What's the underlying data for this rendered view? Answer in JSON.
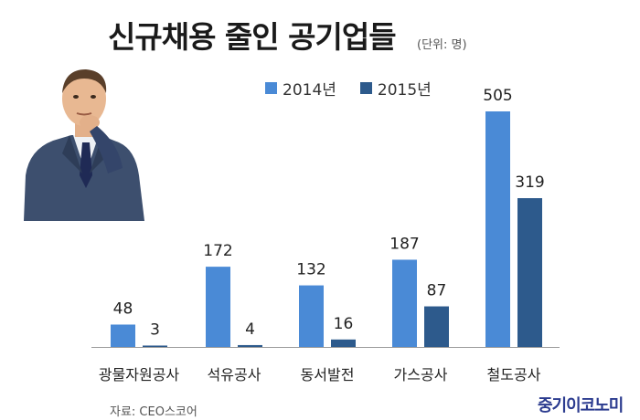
{
  "title": "신규채용 줄인 공기업들",
  "unit": "(단위: 명)",
  "source": "자료: CEO스코어",
  "brand": "중기이코노미",
  "colors": {
    "series_2014": "#4a8ad6",
    "series_2015": "#2d5a8c",
    "axis": "#9a9a9a"
  },
  "chart_data": {
    "type": "bar",
    "categories": [
      "광물자원공사",
      "석유공사",
      "동서발전",
      "가스공사",
      "철도공사"
    ],
    "series": [
      {
        "name": "2014년",
        "values": [
          48,
          172,
          132,
          187,
          505
        ]
      },
      {
        "name": "2015년",
        "values": [
          3,
          4,
          16,
          87,
          319
        ]
      }
    ],
    "title": "신규채용 줄인 공기업들",
    "xlabel": "",
    "ylabel": "",
    "ylim": [
      0,
      505
    ],
    "grid": false,
    "legend": "top-center"
  }
}
